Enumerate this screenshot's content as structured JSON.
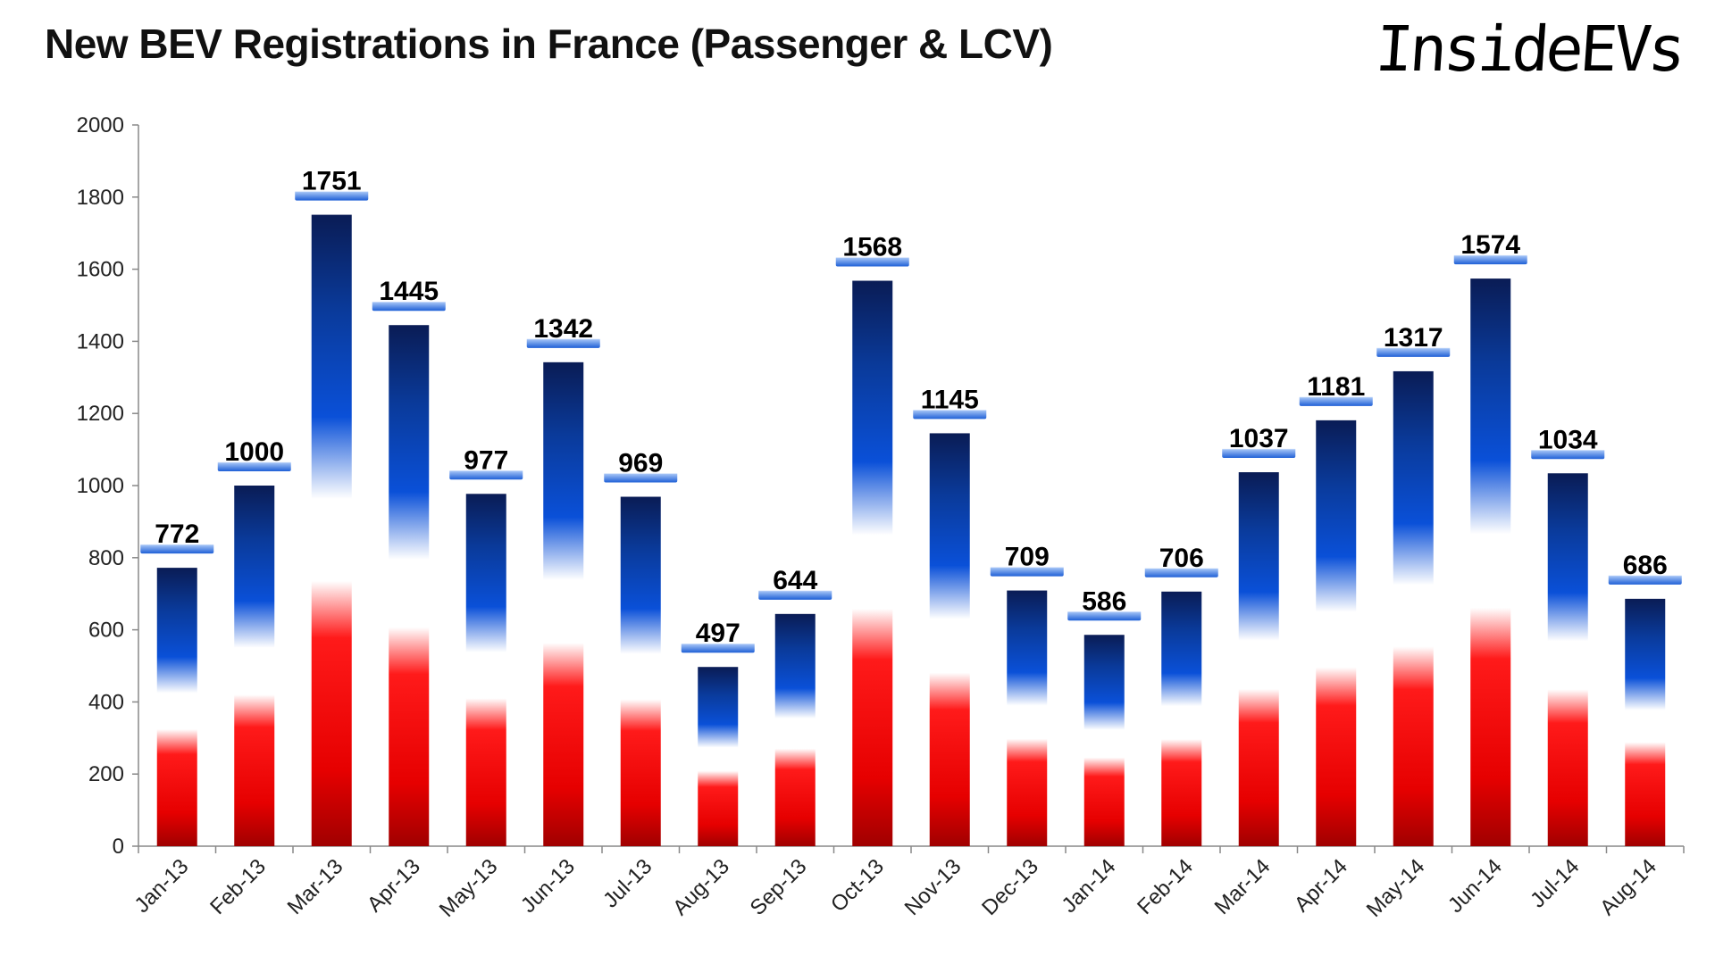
{
  "chart_data": {
    "type": "bar",
    "title": "New BEV Registrations in France (Passenger & LCV)",
    "categories": [
      "Jan-13",
      "Feb-13",
      "Mar-13",
      "Apr-13",
      "May-13",
      "Jun-13",
      "Jul-13",
      "Aug-13",
      "Sep-13",
      "Oct-13",
      "Nov-13",
      "Dec-13",
      "Jan-14",
      "Feb-14",
      "Mar-14",
      "Apr-14",
      "May-14",
      "Jun-14",
      "Jul-14",
      "Aug-14"
    ],
    "values": [
      772,
      1000,
      1751,
      1445,
      977,
      1342,
      969,
      497,
      644,
      1568,
      1145,
      709,
      586,
      706,
      1037,
      1181,
      1317,
      1574,
      1034,
      686
    ],
    "xlabel": "",
    "ylabel": "",
    "ylim": [
      0,
      2000
    ],
    "yticks": [
      0,
      200,
      400,
      600,
      800,
      1000,
      1200,
      1400,
      1600,
      1800,
      2000
    ],
    "grid": false,
    "data_labels": true,
    "bar_fill": "French tricolour gradient (red bottom, white middle, blue top)",
    "colors": {
      "red": "#e00000",
      "dark_red": "#a80000",
      "blue": "#0a46c8",
      "navy": "#0a1e5a"
    }
  },
  "logo": "InsideEVs"
}
